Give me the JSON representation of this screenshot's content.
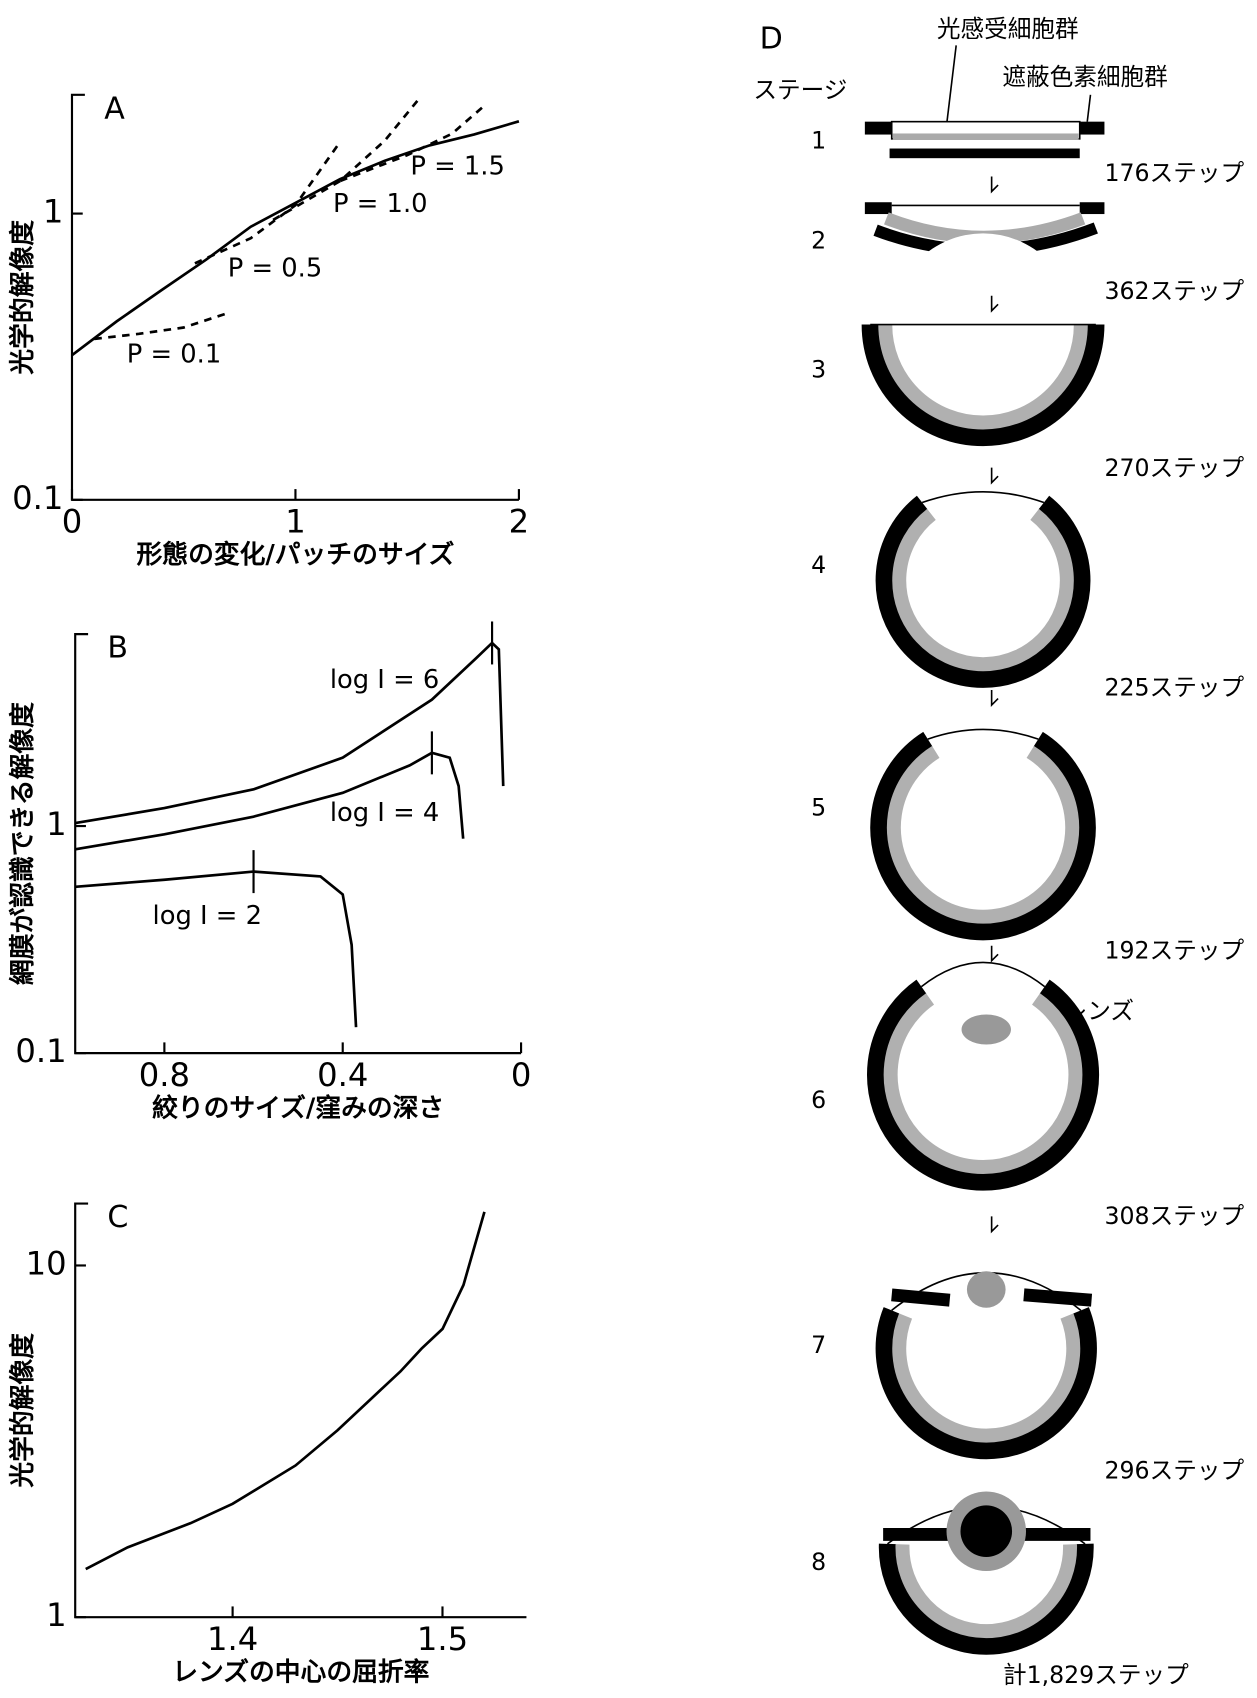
{
  "chart_data": [
    {
      "type": "line",
      "title": "A",
      "yscale": "log",
      "xlabel": "形態の変化/パッチのサイズ",
      "ylabel": "光学的解像度",
      "xlim": [
        0,
        2
      ],
      "ylim": [
        0.1,
        2.6
      ],
      "xticks": [
        0,
        1,
        2
      ],
      "yticks": [
        0.1,
        1
      ],
      "series": [
        {
          "color": "#000000",
          "dash": false,
          "x": [
            0,
            0.2,
            0.4,
            0.6,
            0.8,
            1.0,
            1.2,
            1.4,
            1.6,
            1.8,
            2.0
          ],
          "values": [
            0.32,
            0.42,
            0.54,
            0.69,
            0.9,
            1.09,
            1.32,
            1.53,
            1.73,
            1.89,
            2.1
          ]
        },
        {
          "name": "P = 0.1",
          "color": "#000000",
          "dash": true,
          "x": [
            0.1,
            0.3,
            0.5,
            0.7
          ],
          "values": [
            0.365,
            0.38,
            0.4,
            0.45
          ]
        },
        {
          "name": "P = 0.5",
          "color": "#000000",
          "dash": true,
          "x": [
            0.55,
            0.8,
            1.0,
            1.2
          ],
          "values": [
            0.67,
            0.82,
            1.07,
            1.78
          ]
        },
        {
          "name": "P = 1.0",
          "color": "#000000",
          "dash": true,
          "x": [
            0.9,
            1.2,
            1.4,
            1.55
          ],
          "values": [
            0.95,
            1.3,
            1.8,
            2.5
          ]
        },
        {
          "name": "P = 1.5",
          "color": "#000000",
          "dash": true,
          "x": [
            1.2,
            1.5,
            1.7,
            1.85
          ],
          "values": [
            1.3,
            1.6,
            1.9,
            2.4
          ]
        }
      ]
    },
    {
      "type": "line",
      "title": "B",
      "yscale": "log",
      "xlabel": "絞りのサイズ/窪みの深さ",
      "ylabel": "網膜が認識できる解像度",
      "xlim": [
        1,
        0
      ],
      "ylim": [
        0.1,
        7
      ],
      "xticks": [
        0.8,
        0.4,
        0
      ],
      "yticks": [
        0.1,
        1
      ],
      "series": [
        {
          "name": "log I = 6",
          "color": "#000000",
          "dash": false,
          "peak_x": 0.065,
          "x": [
            1.0,
            0.8,
            0.6,
            0.4,
            0.2,
            0.1,
            0.065,
            0.05,
            0.04
          ],
          "values": [
            1.03,
            1.2,
            1.45,
            2.0,
            3.6,
            5.5,
            6.4,
            6.0,
            1.5
          ]
        },
        {
          "name": "log I = 4",
          "color": "#000000",
          "dash": false,
          "peak_x": 0.2,
          "x": [
            1.0,
            0.8,
            0.6,
            0.4,
            0.25,
            0.2,
            0.16,
            0.14,
            0.13
          ],
          "values": [
            0.79,
            0.92,
            1.1,
            1.4,
            1.85,
            2.1,
            2.0,
            1.5,
            0.88
          ]
        },
        {
          "name": "log I = 2",
          "color": "#000000",
          "dash": false,
          "peak_x": 0.6,
          "x": [
            1.0,
            0.8,
            0.6,
            0.45,
            0.4,
            0.38,
            0.37
          ],
          "values": [
            0.54,
            0.58,
            0.63,
            0.6,
            0.5,
            0.3,
            0.13
          ]
        }
      ]
    },
    {
      "type": "line",
      "title": "C",
      "yscale": "log",
      "xlabel": "レンズの中心の屈折率",
      "ylabel": "光学的解像度",
      "xlim": [
        1.325,
        1.54
      ],
      "ylim": [
        1,
        15
      ],
      "xticks": [
        1.4,
        1.5
      ],
      "yticks": [
        1,
        10
      ],
      "series": [
        {
          "color": "#000000",
          "dash": false,
          "x": [
            1.33,
            1.35,
            1.38,
            1.4,
            1.43,
            1.45,
            1.47,
            1.48,
            1.49,
            1.5,
            1.51,
            1.52
          ],
          "values": [
            1.37,
            1.58,
            1.85,
            2.1,
            2.7,
            3.4,
            4.4,
            5.0,
            5.8,
            6.6,
            8.8,
            14.2
          ]
        }
      ]
    }
  ],
  "diagram": {
    "title": "D",
    "header": "ステージ",
    "photoreceptor_label": "光感受細胞群",
    "pigment_label": "遮蔽色素細胞群",
    "stages": [
      "1",
      "2",
      "3",
      "4",
      "5",
      "6",
      "7",
      "8"
    ],
    "steps": [
      "176ステップ",
      "362ステップ",
      "270ステップ",
      "225ステップ",
      "192ステップ",
      "308ステップ",
      "296ステップ"
    ],
    "lens_label": "レンズ",
    "total": "計1,829ステップ"
  }
}
